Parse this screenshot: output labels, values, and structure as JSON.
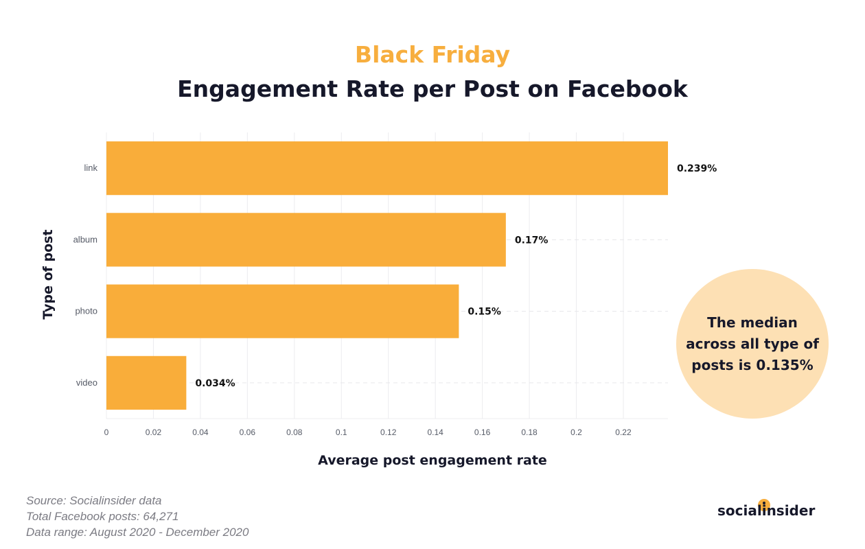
{
  "header": {
    "title_top": "Black Friday",
    "title_main": "Engagement Rate per Post on Facebook"
  },
  "chart_data": {
    "type": "bar",
    "orientation": "horizontal",
    "categories": [
      "link",
      "album",
      "photo",
      "video"
    ],
    "values": [
      0.239,
      0.17,
      0.15,
      0.034
    ],
    "value_labels": [
      "0.239%",
      "0.17%",
      "0.15%",
      "0.034%"
    ],
    "xlabel": "Average post engagement rate",
    "ylabel": "Type of post",
    "xlim": [
      0,
      0.239
    ],
    "x_ticks": [
      0,
      0.02,
      0.04,
      0.06,
      0.08,
      0.1,
      0.12,
      0.14,
      0.16,
      0.18,
      0.2,
      0.22
    ],
    "x_tick_labels": [
      "0",
      "0.02",
      "0.04",
      "0.06",
      "0.08",
      "0.1",
      "0.12",
      "0.14",
      "0.16",
      "0.18",
      "0.2",
      "0.22"
    ],
    "grid": true,
    "bar_color": "#f9ad3a"
  },
  "callout": {
    "line1": "The median",
    "line2": "across all type of",
    "line3_prefix": "posts is",
    "line3_value": "0.135%"
  },
  "footer": {
    "source": "Source: Socialinsider data",
    "total": "Total Facebook posts: 64,271",
    "range": "Data range: August 2020 - December 2020"
  },
  "brand": {
    "logo_text": "socialinsider",
    "accent_color": "#f7ae3e",
    "title_color": "#16182a"
  }
}
